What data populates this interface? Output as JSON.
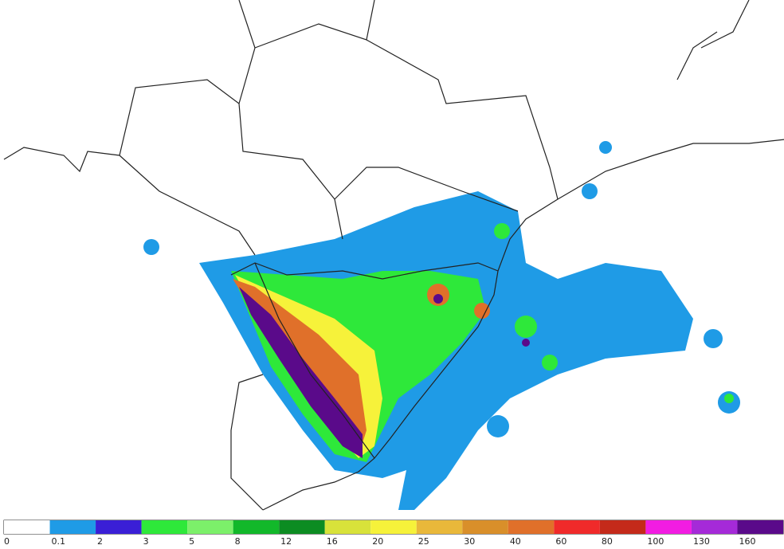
{
  "legend": {
    "levels": [
      0,
      0.1,
      2,
      3,
      5,
      8,
      12,
      16,
      20,
      25,
      30,
      40,
      60,
      80,
      100,
      130,
      160
    ],
    "colors": [
      "#ffffff",
      "#1f9be6",
      "#3a1fd6",
      "#2ee83a",
      "#7cf06a",
      "#12b82a",
      "#0c8c22",
      "#d8e23a",
      "#f6f23a",
      "#e9b83a",
      "#d98f2a",
      "#e0702a",
      "#f02a2a",
      "#c42a1a",
      "#f21ce2",
      "#a52ad8",
      "#5a0a8a"
    ]
  }
}
